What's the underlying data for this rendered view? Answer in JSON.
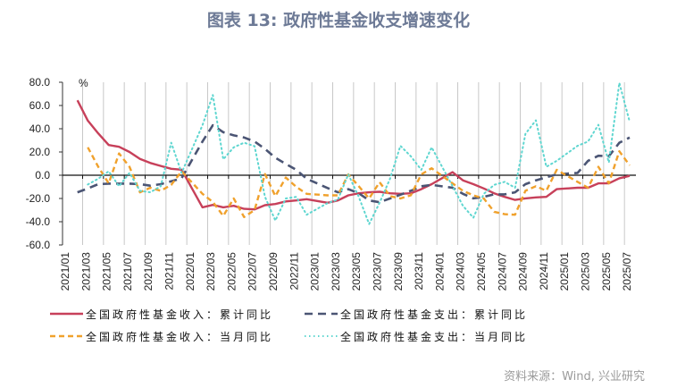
{
  "title": "图表 13: 政府性基金收支增速变化",
  "source": "资料来源：Wind, 兴业研究",
  "chart_data": {
    "type": "line",
    "title": "图表 13: 政府性基金收支增速变化",
    "ylabel": "%",
    "ylim": [
      -60,
      80
    ],
    "yticks": [
      "80.0",
      "60.0",
      "40.0",
      "20.0",
      "0.0",
      "-20.0",
      "-40.0",
      "-60.0"
    ],
    "ytick_values": [
      80,
      60,
      40,
      20,
      0,
      -20,
      -40,
      -60
    ],
    "xticks": [
      "2021/01",
      "2021/03",
      "2021/05",
      "2021/07",
      "2021/09",
      "2021/11",
      "2022/01",
      "2022/03",
      "2022/05",
      "2022/07",
      "2022/09",
      "2022/11",
      "2023/01",
      "2023/03",
      "2023/05",
      "2023/07",
      "2023/09",
      "2023/11",
      "2024/01",
      "2024/03",
      "2024/05",
      "2024/07",
      "2024/09",
      "2024/11",
      "2025/01",
      "2025/03",
      "2025/05",
      "2025/07"
    ],
    "x_start": "2021/01",
    "x_frequency": "monthly",
    "grid": "vertical",
    "legend_position": "bottom",
    "series": [
      {
        "name": "全国政府性基金收入：累计同比",
        "color": "#c7405a",
        "style": "solid",
        "values": [
          null,
          64.5,
          47,
          36,
          26,
          24.5,
          20,
          14,
          10.5,
          8,
          5.5,
          4.8,
          null,
          -27.6,
          -25.5,
          -27.6,
          -26.3,
          -28.9,
          -29.4,
          -25.8,
          -24.8,
          -22.5,
          -21.7,
          -20.6,
          null,
          -23.7,
          -21.7,
          -17.3,
          -15.5,
          -14.7,
          -14.2,
          -15.5,
          -16,
          -15.5,
          -12,
          -7.7,
          null,
          2.6,
          -4.4,
          -7.7,
          -11.4,
          -15.5,
          -18.6,
          -21.2,
          -19.9,
          -19.1,
          -18.6,
          -12,
          null,
          -10.8,
          -10.8,
          -7,
          -7,
          -2.6,
          -0.5
        ]
      },
      {
        "name": "全国政府性基金支出：累计同比",
        "color": "#4b5574",
        "style": "dashed",
        "values": [
          null,
          -14.7,
          -11.4,
          -7.7,
          -7.2,
          -7.2,
          -7.2,
          -7.7,
          -9,
          -7.7,
          -5.2,
          -2.6,
          null,
          29,
          43,
          37,
          34.3,
          32.5,
          29,
          22.7,
          15,
          9.8,
          4.6,
          -3,
          null,
          -11,
          -14.7,
          -12,
          -15.5,
          -21.7,
          -23.2,
          -20,
          -16.8,
          -13.4,
          -9.5,
          -8.3,
          null,
          -10.8,
          -16,
          -19.9,
          -18.6,
          -16.5,
          -16.5,
          -14.7,
          -7.7,
          -4.4,
          -1.8,
          0.8,
          null,
          2,
          12.4,
          16.8,
          16.3,
          27.9,
          32.5
        ]
      },
      {
        "name": "全国政府性基金收入：当月同比",
        "color": "#f0a12c",
        "style": "dashed-short",
        "values": [
          null,
          null,
          24,
          7.2,
          -7,
          18.8,
          7.2,
          -14.7,
          -10.8,
          -13.4,
          -8.3,
          3.4,
          null,
          -16,
          -23,
          -35,
          -20,
          -36,
          -30,
          1,
          -18,
          -2,
          -10,
          -16,
          null,
          -17.3,
          -17.3,
          0.8,
          -9.5,
          -20,
          -6,
          -18,
          -20,
          -17.3,
          0.8,
          6,
          null,
          -7,
          -13.4,
          -17.3,
          -20,
          -31.5,
          -33.5,
          -34,
          -13.4,
          -9.5,
          -13.4,
          4.6,
          null,
          -5.7,
          -10.8,
          7.2,
          -7,
          20.6,
          8.5
        ]
      },
      {
        "name": "全国政府性基金支出：当月同比",
        "color": "#5fd6d0",
        "style": "dotted",
        "values": [
          null,
          null,
          -8,
          -3,
          3.4,
          -9.5,
          2,
          -13.4,
          -14.7,
          -9.5,
          28,
          2,
          null,
          43,
          69,
          13.7,
          24,
          28,
          25,
          -18.6,
          -39,
          -20,
          -18.6,
          -34,
          null,
          -24,
          -21,
          0.8,
          -18.6,
          -42,
          -23.7,
          -3,
          25.3,
          16.3,
          4.6,
          24,
          null,
          -9.5,
          -26.3,
          -36.6,
          -16,
          -8.3,
          -5.7,
          -10.8,
          35.6,
          47.2,
          7.2,
          12.4,
          null,
          25.3,
          29,
          43.4,
          11,
          79.5,
          46
        ]
      }
    ]
  }
}
